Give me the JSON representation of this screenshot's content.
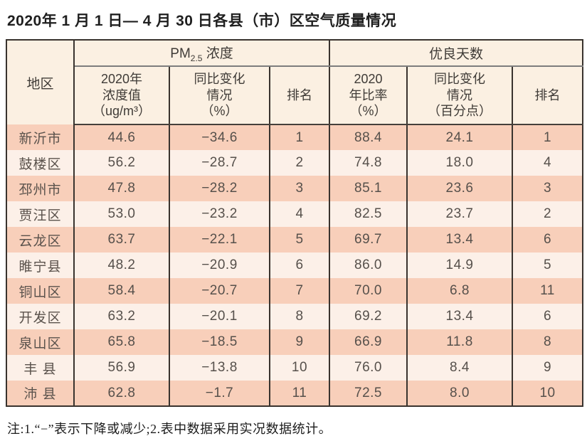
{
  "page": {
    "title": "2020年 1 月 1 日— 4 月 30 日各县（市）区空气质量情况",
    "note": "注:1.“−”表示下降或减少;2.表中数据采用实况数据统计。"
  },
  "colors": {
    "row_odd_bg": "#f8cfba",
    "row_even_bg": "#fcf0e8",
    "header_bg": "#fbf0e2",
    "border": "#39332e"
  },
  "table": {
    "header": {
      "region": "地区",
      "pm_group": {
        "prefix": "PM",
        "sub": "2.5",
        "suffix": " 浓度"
      },
      "days_group": "优良天数",
      "sub_headers": {
        "pm_value": "2020年\n浓度值\n（ug/m³）",
        "pm_change": "同比变化\n情况\n（%）",
        "pm_rank": "排名",
        "days_ratio": "2020\n年比率\n（%）",
        "days_change": "同比变化\n情况\n（百分点）",
        "days_rank": "排名"
      }
    },
    "rows": [
      [
        "新沂市",
        "44.6",
        "−34.6",
        "1",
        "88.4",
        "24.1",
        "1"
      ],
      [
        "鼓楼区",
        "56.2",
        "−28.7",
        "2",
        "74.8",
        "18.0",
        "4"
      ],
      [
        "邳州市",
        "47.8",
        "−28.2",
        "3",
        "85.1",
        "23.6",
        "3"
      ],
      [
        "贾汪区",
        "53.0",
        "−23.2",
        "4",
        "82.5",
        "23.7",
        "2"
      ],
      [
        "云龙区",
        "63.7",
        "−22.1",
        "5",
        "69.7",
        "13.4",
        "6"
      ],
      [
        "睢宁县",
        "48.2",
        "−20.9",
        "6",
        "86.0",
        "14.9",
        "5"
      ],
      [
        "铜山区",
        "58.4",
        "−20.7",
        "7",
        "70.0",
        "6.8",
        "11"
      ],
      [
        "开发区",
        "63.2",
        "−20.1",
        "8",
        "69.2",
        "13.4",
        "6"
      ],
      [
        "泉山区",
        "65.8",
        "−18.5",
        "9",
        "66.9",
        "11.8",
        "8"
      ],
      [
        "丰 县",
        "56.9",
        "−13.8",
        "10",
        "76.0",
        "8.4",
        "9"
      ],
      [
        "沛 县",
        "62.8",
        "−1.7",
        "11",
        "72.5",
        "8.0",
        "10"
      ]
    ]
  }
}
